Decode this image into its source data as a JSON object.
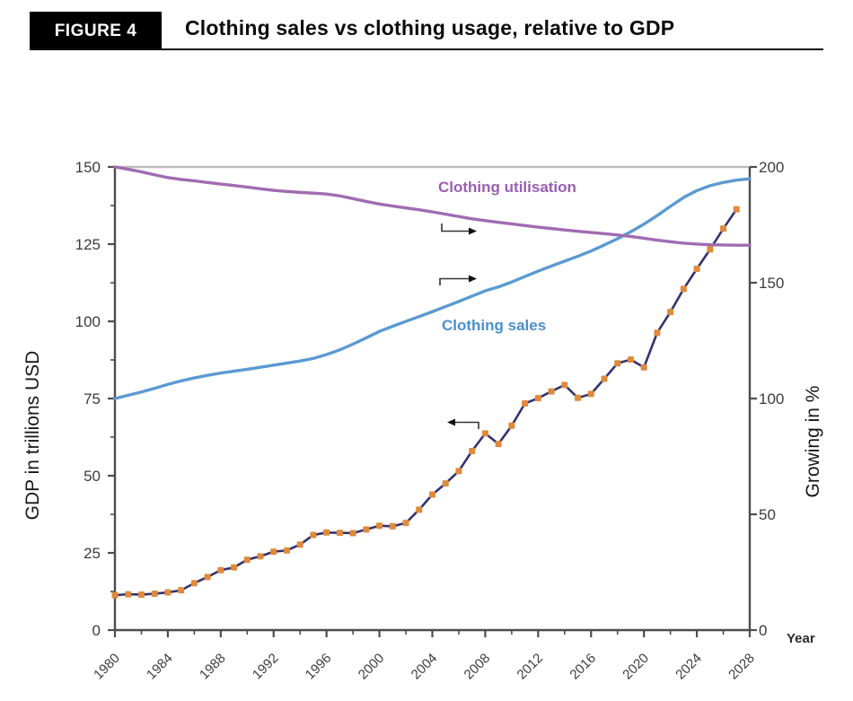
{
  "header": {
    "figure_label": "FIGURE 4",
    "title": "Clothing sales vs clothing usage, relative to GDP"
  },
  "chart_data": {
    "type": "line",
    "title": "Clothing sales vs clothing usage, relative to GDP",
    "x_axis": {
      "label": "Year",
      "range": [
        1980,
        2028
      ],
      "tick_labels": [
        "1980",
        "1984",
        "1988",
        "1992",
        "1996",
        "2000",
        "2004",
        "2008",
        "2012",
        "2016",
        "2020",
        "2024",
        "2028"
      ],
      "major_tick_years": [
        1980,
        1984,
        1988,
        1992,
        1996,
        2000,
        2004,
        2008,
        2012,
        2016,
        2020,
        2024,
        2028
      ],
      "minor_tick_years": [
        1982,
        1986,
        1990,
        1994,
        1998,
        2002,
        2006,
        2010,
        2014,
        2018,
        2022,
        2026
      ]
    },
    "y_axis_left": {
      "label": "GDP in trillions USD",
      "range": [
        0,
        150
      ],
      "tick_labels": [
        "0",
        "25",
        "50",
        "75",
        "100",
        "125",
        "150"
      ],
      "major_ticks": [
        0,
        25,
        50,
        75,
        100,
        125,
        150
      ],
      "minor_ticks": [
        12.5,
        37.5,
        62.5,
        87.5,
        112.5,
        137.5
      ]
    },
    "y_axis_right": {
      "label": "Growing in %",
      "range": [
        0,
        200
      ],
      "tick_labels": [
        "0",
        "50",
        "100",
        "150",
        "200"
      ],
      "major_ticks": [
        0,
        50,
        100,
        150,
        200
      ]
    },
    "gridlines": {
      "top_line_left_value": 150,
      "top_line_right_value": 200
    },
    "legend_position": "inline-labels",
    "series": [
      {
        "name": "GDP",
        "axis": "left",
        "style": "line-with-square-markers",
        "color": "#32336f",
        "marker_color": "#df8a3c",
        "years": [
          1980,
          1981,
          1982,
          1983,
          1984,
          1985,
          1986,
          1987,
          1988,
          1989,
          1990,
          1991,
          1992,
          1993,
          1994,
          1995,
          1996,
          1997,
          1998,
          1999,
          2000,
          2001,
          2002,
          2003,
          2004,
          2005,
          2006,
          2007,
          2008,
          2009,
          2010,
          2011,
          2012,
          2013,
          2014,
          2015,
          2016,
          2017,
          2018,
          2019,
          2020,
          2021,
          2022,
          2023,
          2024,
          2025,
          2026,
          2027
        ],
        "values": [
          11.3,
          11.6,
          11.5,
          11.8,
          12.2,
          12.9,
          15.2,
          17.2,
          19.4,
          20.3,
          22.8,
          23.9,
          25.4,
          25.8,
          27.7,
          30.8,
          31.6,
          31.5,
          31.4,
          32.6,
          33.8,
          33.6,
          34.7,
          39.0,
          43.9,
          47.5,
          51.5,
          58.0,
          63.7,
          60.3,
          66.2,
          73.4,
          75.1,
          77.3,
          79.4,
          75.2,
          76.5,
          81.4,
          86.4,
          87.6,
          85.1,
          96.3,
          103.0,
          110.5,
          117.0,
          123.3,
          130.0,
          136.3
        ]
      },
      {
        "name": "Clothing sales",
        "axis": "right",
        "style": "line",
        "color": "#5b9ad2",
        "years": [
          1980,
          1981,
          1982,
          1983,
          1984,
          1985,
          1986,
          1987,
          1988,
          1989,
          1990,
          1991,
          1992,
          1993,
          1994,
          1995,
          1996,
          1997,
          1998,
          1999,
          2000,
          2001,
          2002,
          2003,
          2004,
          2005,
          2006,
          2007,
          2008,
          2009,
          2010,
          2011,
          2012,
          2013,
          2014,
          2015,
          2016,
          2017,
          2018,
          2019,
          2020,
          2021,
          2022,
          2023,
          2024,
          2025,
          2026,
          2027,
          2028
        ],
        "values": [
          100.0,
          101.4,
          102.8,
          104.4,
          106.1,
          107.6,
          108.9,
          110.0,
          111.0,
          111.8,
          112.6,
          113.5,
          114.4,
          115.3,
          116.2,
          117.3,
          119.0,
          121.0,
          123.5,
          126.2,
          129.0,
          131.2,
          133.3,
          135.4,
          137.5,
          139.7,
          141.9,
          144.2,
          146.5,
          148.2,
          150.3,
          152.7,
          155.0,
          157.2,
          159.3,
          161.4,
          163.7,
          166.3,
          169.0,
          172.0,
          175.3,
          179.0,
          183.0,
          186.8,
          189.8,
          191.9,
          193.3,
          194.3,
          194.9
        ]
      },
      {
        "name": "Clothing utilisation",
        "axis": "right",
        "style": "line",
        "color": "#a06cb2",
        "years": [
          1980,
          1981,
          1982,
          1983,
          1984,
          1985,
          1986,
          1987,
          1988,
          1989,
          1990,
          1991,
          1992,
          1993,
          1994,
          1995,
          1996,
          1997,
          1998,
          1999,
          2000,
          2001,
          2002,
          2003,
          2004,
          2005,
          2006,
          2007,
          2008,
          2009,
          2010,
          2011,
          2012,
          2013,
          2014,
          2015,
          2016,
          2017,
          2018,
          2019,
          2020,
          2021,
          2022,
          2023,
          2024,
          2025,
          2026,
          2027,
          2028
        ],
        "values": [
          200.0,
          199.0,
          197.9,
          196.6,
          195.4,
          194.6,
          194.0,
          193.3,
          192.6,
          192.0,
          191.3,
          190.6,
          189.9,
          189.4,
          189.0,
          188.7,
          188.3,
          187.5,
          186.3,
          185.1,
          184.0,
          183.1,
          182.3,
          181.5,
          180.6,
          179.6,
          178.6,
          177.6,
          176.8,
          176.1,
          175.4,
          174.7,
          174.0,
          173.4,
          172.8,
          172.2,
          171.7,
          171.2,
          170.6,
          170.0,
          169.2,
          168.4,
          167.7,
          167.1,
          166.7,
          166.4,
          166.3,
          166.2,
          166.2
        ]
      }
    ],
    "annotations": {
      "utilisation_label": {
        "text": "Clothing utilisation",
        "color": "#9a5fb0"
      },
      "sales_label": {
        "text": "Clothing sales",
        "color": "#4a90d0"
      },
      "arrows": [
        {
          "direction": "right",
          "series": "Clothing utilisation"
        },
        {
          "direction": "right",
          "series": "Clothing sales"
        },
        {
          "direction": "left",
          "series": "GDP"
        }
      ]
    },
    "colors": {
      "axis": "#4d4d4d",
      "gridline": "#bcbcbc",
      "tick_text": "#3b3b3b"
    }
  }
}
